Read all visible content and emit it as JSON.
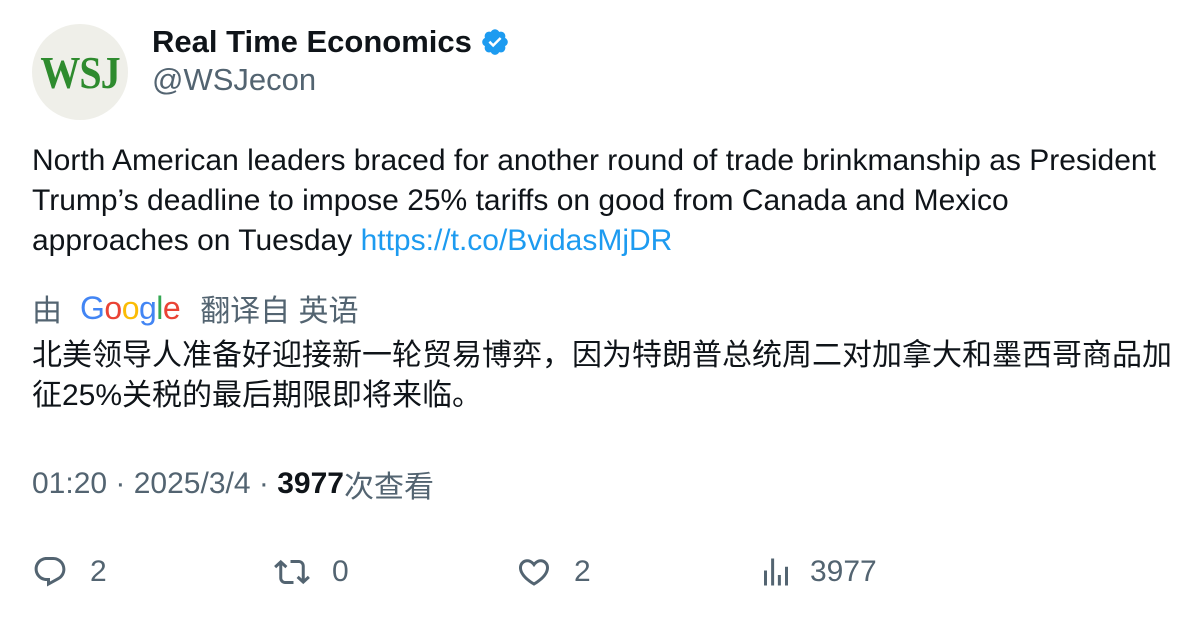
{
  "header": {
    "avatar_text": "WSJ",
    "display_name": "Real Time Economics",
    "handle": "@WSJecon",
    "verified_icon": "verified-badge-icon"
  },
  "tweet": {
    "text": "North American leaders braced for another round of trade brinkmanship as President Trump’s deadline to impose 25% tariffs on good from Canada and Mexico approaches on Tuesday ",
    "link": "https://t.co/BvidasMjDR"
  },
  "translation": {
    "prefix": "由",
    "google_letters": [
      "G",
      "o",
      "o",
      "g",
      "l",
      "e"
    ],
    "suffix": "翻译自 英语",
    "text": "北美领导人准备好迎接新一轮贸易博弈，因为特朗普总统周二对加拿大和墨西哥商品加征25%关税的最后期限即将来临。"
  },
  "meta": {
    "time": "01:20",
    "separator": " · ",
    "date": "2025/3/4",
    "views_count": "3977",
    "views_label": "次查看"
  },
  "actions": {
    "reply_count": "2",
    "retweet_count": "0",
    "like_count": "2",
    "views_count": "3977"
  },
  "colors": {
    "accent": "#1d9bf0",
    "secondary_text": "#536471",
    "primary_text": "#0f1419",
    "google_blue": "#4285f4",
    "google_red": "#ea4335",
    "google_yellow": "#fbbc05",
    "google_green": "#34a853",
    "wsj_green": "#2e8b2e"
  }
}
